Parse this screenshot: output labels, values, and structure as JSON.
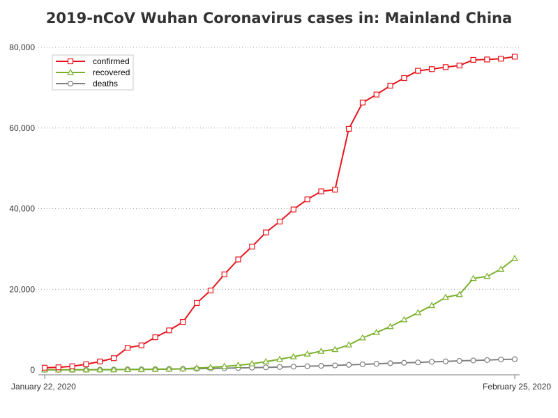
{
  "chart_data": {
    "type": "line",
    "title": "2019-nCoV Wuhan Coronavirus cases in: Mainland China",
    "xlabel": "",
    "ylabel": "",
    "x": [
      "2020-01-22",
      "2020-01-23",
      "2020-01-24",
      "2020-01-25",
      "2020-01-26",
      "2020-01-27",
      "2020-01-28",
      "2020-01-29",
      "2020-01-30",
      "2020-01-31",
      "2020-02-01",
      "2020-02-02",
      "2020-02-03",
      "2020-02-04",
      "2020-02-05",
      "2020-02-06",
      "2020-02-07",
      "2020-02-08",
      "2020-02-09",
      "2020-02-10",
      "2020-02-11",
      "2020-02-12",
      "2020-02-13",
      "2020-02-14",
      "2020-02-15",
      "2020-02-16",
      "2020-02-17",
      "2020-02-18",
      "2020-02-19",
      "2020-02-20",
      "2020-02-21",
      "2020-02-22",
      "2020-02-23",
      "2020-02-24",
      "2020-02-25"
    ],
    "x_tick_labels": [
      {
        "x": "2020-01-22",
        "label": "January 22, 2020"
      },
      {
        "x": "2020-02-25",
        "label": "February 25, 2020"
      }
    ],
    "ylim": [
      0,
      80000
    ],
    "y_ticks": [
      0,
      20000,
      40000,
      60000,
      80000
    ],
    "y_tick_labels": [
      "0",
      "20,000",
      "40,000",
      "60,000",
      "80,000"
    ],
    "grid": "horizontal-dotted",
    "legend_position": "top-left",
    "series": [
      {
        "name": "confirmed",
        "color": "#e8141b",
        "marker": "square",
        "values": [
          550,
          650,
          900,
          1400,
          2100,
          2900,
          5500,
          6100,
          8100,
          9800,
          11900,
          16600,
          19700,
          23700,
          27400,
          30600,
          34100,
          36800,
          39800,
          42300,
          44300,
          44700,
          59800,
          66300,
          68300,
          70500,
          72400,
          74200,
          74600,
          75100,
          75500,
          76900,
          77000,
          77200,
          77700
        ]
      },
      {
        "name": "recovered",
        "color": "#7ab12c",
        "marker": "triangle",
        "values": [
          30,
          30,
          40,
          40,
          50,
          60,
          100,
          130,
          170,
          220,
          280,
          480,
          630,
          890,
          1150,
          1540,
          2050,
          2650,
          3280,
          3950,
          4640,
          5080,
          6210,
          7970,
          9300,
          10750,
          12460,
          14200,
          15960,
          18010,
          18700,
          22700,
          23200,
          24990,
          27650
        ]
      },
      {
        "name": "deaths",
        "color": "#808080",
        "marker": "circle",
        "values": [
          17,
          18,
          26,
          42,
          56,
          82,
          131,
          133,
          171,
          213,
          259,
          304,
          361,
          425,
          490,
          562,
          636,
          722,
          811,
          908,
          1016,
          1113,
          1259,
          1380,
          1523,
          1665,
          1770,
          1868,
          2004,
          2118,
          2236,
          2345,
          2442,
          2592,
          2663
        ]
      }
    ]
  }
}
